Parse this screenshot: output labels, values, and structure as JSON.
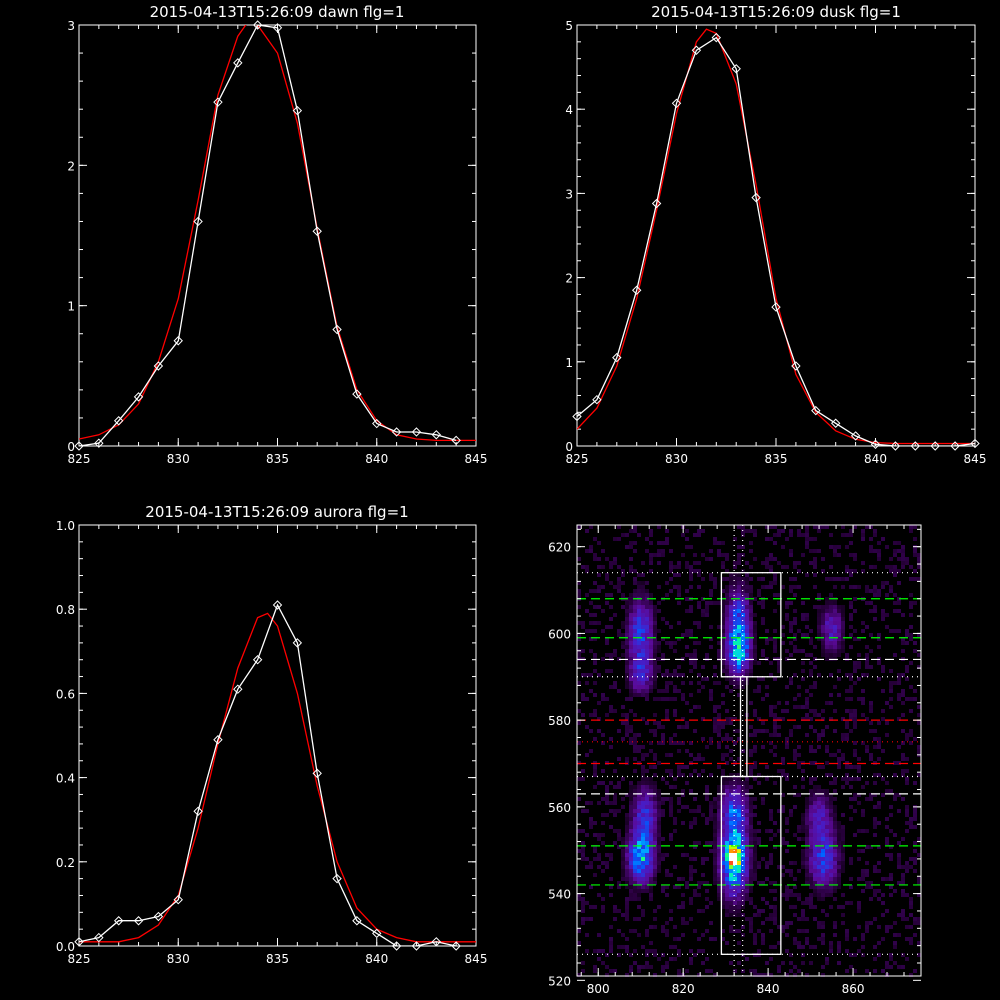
{
  "chart_data": [
    {
      "type": "line",
      "title": "2015-04-13T15:26:09 dawn flg=1",
      "xlim": [
        825,
        845
      ],
      "ylim": [
        0,
        3
      ],
      "xticks": [
        825,
        830,
        835,
        840,
        845
      ],
      "yticks": [
        0,
        1,
        2,
        3
      ],
      "series": [
        {
          "color": "#ffffff",
          "markers": "diamond",
          "x": [
            825,
            826,
            827,
            828,
            829,
            830,
            831,
            832,
            833,
            834,
            835,
            836,
            837,
            838,
            839,
            840,
            841,
            842,
            843,
            844
          ],
          "y": [
            0.0,
            0.02,
            0.18,
            0.35,
            0.57,
            0.75,
            1.6,
            2.45,
            2.73,
            3.0,
            2.98,
            2.39,
            1.53,
            0.83,
            0.37,
            0.16,
            0.1,
            0.1,
            0.08,
            0.04
          ]
        },
        {
          "color": "#ff0000",
          "x": [
            825,
            826,
            827,
            828,
            829,
            830,
            831,
            832,
            833,
            833.5,
            834,
            835,
            836,
            837,
            838,
            839,
            840,
            841,
            842,
            843,
            844,
            845
          ],
          "y": [
            0.05,
            0.08,
            0.15,
            0.3,
            0.6,
            1.05,
            1.75,
            2.5,
            2.92,
            3.02,
            3.0,
            2.8,
            2.3,
            1.55,
            0.85,
            0.4,
            0.18,
            0.08,
            0.05,
            0.04,
            0.04,
            0.04
          ]
        }
      ]
    },
    {
      "type": "line",
      "title": "2015-04-13T15:26:09 dusk flg=1",
      "xlim": [
        825,
        845
      ],
      "ylim": [
        0,
        5
      ],
      "xticks": [
        825,
        830,
        835,
        840,
        845
      ],
      "yticks": [
        0,
        1,
        2,
        3,
        4,
        5
      ],
      "series": [
        {
          "color": "#ffffff",
          "markers": "diamond",
          "x": [
            825,
            826,
            827,
            828,
            829,
            830,
            831,
            832,
            833,
            834,
            835,
            836,
            837,
            838,
            839,
            840,
            841,
            842,
            843,
            844,
            845
          ],
          "y": [
            0.35,
            0.55,
            1.05,
            1.85,
            2.88,
            4.07,
            4.7,
            4.85,
            4.48,
            2.95,
            1.65,
            0.95,
            0.42,
            0.27,
            0.12,
            0.02,
            0.0,
            0.0,
            0.0,
            0.0,
            0.03
          ]
        },
        {
          "color": "#ff0000",
          "x": [
            825,
            826,
            827,
            828,
            829,
            830,
            831,
            831.5,
            832,
            833,
            834,
            835,
            836,
            837,
            838,
            839,
            840,
            841,
            842,
            843,
            844,
            845
          ],
          "y": [
            0.2,
            0.45,
            0.95,
            1.75,
            2.8,
            3.95,
            4.8,
            4.95,
            4.9,
            4.3,
            3.1,
            1.75,
            0.85,
            0.4,
            0.18,
            0.08,
            0.04,
            0.03,
            0.03,
            0.03,
            0.03,
            0.03
          ]
        }
      ]
    },
    {
      "type": "line",
      "title": "2015-04-13T15:26:09 aurora flg=1",
      "xlim": [
        825,
        845
      ],
      "ylim": [
        0,
        1.0
      ],
      "xticks": [
        825,
        830,
        835,
        840,
        845
      ],
      "yticks": [
        0.0,
        0.2,
        0.4,
        0.6,
        0.8,
        1.0
      ],
      "yticklabels": [
        "0.0",
        "0.2",
        "0.4",
        "0.6",
        "0.8",
        "1.0"
      ],
      "series": [
        {
          "color": "#ffffff",
          "markers": "diamond",
          "x": [
            825,
            826,
            827,
            828,
            829,
            830,
            831,
            832,
            833,
            834,
            835,
            836,
            837,
            838,
            839,
            840,
            841,
            842,
            843,
            844
          ],
          "y": [
            0.01,
            0.02,
            0.06,
            0.06,
            0.07,
            0.11,
            0.32,
            0.49,
            0.61,
            0.68,
            0.81,
            0.72,
            0.41,
            0.16,
            0.06,
            0.03,
            0.0,
            0.0,
            0.01,
            0.0
          ]
        },
        {
          "color": "#ff0000",
          "x": [
            825,
            826,
            827,
            828,
            829,
            830,
            831,
            832,
            833,
            834,
            834.5,
            835,
            836,
            837,
            838,
            839,
            840,
            841,
            842,
            843,
            844,
            845
          ],
          "y": [
            0.01,
            0.01,
            0.01,
            0.02,
            0.05,
            0.12,
            0.28,
            0.48,
            0.66,
            0.78,
            0.79,
            0.76,
            0.6,
            0.38,
            0.2,
            0.09,
            0.04,
            0.02,
            0.01,
            0.01,
            0.01,
            0.01
          ]
        }
      ]
    },
    {
      "type": "heatmap",
      "title": "",
      "xlim": [
        795,
        876
      ],
      "ylim": [
        521,
        625
      ],
      "xticks": [
        800,
        820,
        840,
        860
      ],
      "yticks": [
        520,
        540,
        560,
        580,
        600,
        620
      ],
      "grid": false,
      "blobs": [
        {
          "x": 810,
          "y": 548,
          "sx": 2.2,
          "sy": 4.0,
          "amp": 0.55
        },
        {
          "x": 811,
          "y": 558,
          "sx": 2.2,
          "sy": 5.0,
          "amp": 0.35
        },
        {
          "x": 810,
          "y": 600,
          "sx": 2.2,
          "sy": 6.0,
          "amp": 0.4
        },
        {
          "x": 810,
          "y": 590,
          "sx": 2.0,
          "sy": 3.0,
          "amp": 0.25
        },
        {
          "x": 832,
          "y": 548,
          "sx": 2.3,
          "sy": 6.0,
          "amp": 0.7
        },
        {
          "x": 832,
          "y": 548,
          "sx": 1.0,
          "sy": 1.2,
          "amp": 0.5
        },
        {
          "x": 832,
          "y": 560,
          "sx": 2.3,
          "sy": 4.0,
          "amp": 0.35
        },
        {
          "x": 833,
          "y": 601,
          "sx": 2.0,
          "sy": 6.5,
          "amp": 0.5
        },
        {
          "x": 833,
          "y": 595,
          "sx": 2.0,
          "sy": 3.0,
          "amp": 0.3
        },
        {
          "x": 853,
          "y": 548,
          "sx": 2.5,
          "sy": 5.0,
          "amp": 0.4
        },
        {
          "x": 852,
          "y": 558,
          "sx": 2.2,
          "sy": 4.0,
          "amp": 0.25
        },
        {
          "x": 855,
          "y": 601,
          "sx": 2.0,
          "sy": 4.0,
          "amp": 0.3
        }
      ],
      "hlines": [
        {
          "y": 614,
          "color": "#ffffff",
          "style": "dotted"
        },
        {
          "y": 608,
          "color": "#00ff00",
          "style": "dashed"
        },
        {
          "y": 599,
          "color": "#00ff00",
          "style": "dashed"
        },
        {
          "y": 594,
          "color": "#ffffff",
          "style": "dashed"
        },
        {
          "y": 590,
          "color": "#ffffff",
          "style": "dotted"
        },
        {
          "y": 580,
          "color": "#ff0000",
          "style": "dashed"
        },
        {
          "y": 575,
          "color": "#ff0000",
          "style": "dotted"
        },
        {
          "y": 570,
          "color": "#ff0000",
          "style": "dashed"
        },
        {
          "y": 567,
          "color": "#ffffff",
          "style": "dotted"
        },
        {
          "y": 563,
          "color": "#ffffff",
          "style": "dashed"
        },
        {
          "y": 551,
          "color": "#00ff00",
          "style": "dashed"
        },
        {
          "y": 542,
          "color": "#00ff00",
          "style": "dashed"
        },
        {
          "y": 526,
          "color": "#ffffff",
          "style": "dotted"
        }
      ],
      "vlines": [
        {
          "x": 832,
          "color": "#ffffff",
          "style": "dotted"
        },
        {
          "x": 834,
          "color": "#ffffff",
          "style": "dotted"
        }
      ],
      "rects": [
        {
          "x0": 829,
          "x1": 843,
          "y0": 590,
          "y1": 614
        },
        {
          "x0": 829,
          "x1": 843,
          "y0": 526,
          "y1": 567
        },
        {
          "x0": 833.5,
          "x1": 835,
          "y0": 567,
          "y1": 590
        }
      ]
    }
  ]
}
